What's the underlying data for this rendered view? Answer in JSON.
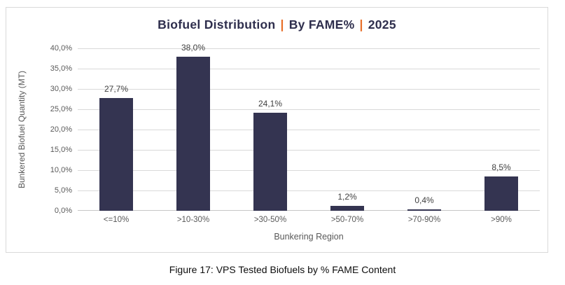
{
  "title": {
    "part1": "Biofuel Distribution",
    "separator": "|",
    "part2": "By FAME%",
    "part3": "2025"
  },
  "caption": "Figure 17: VPS Tested Biofuels by % FAME Content",
  "colors": {
    "bar": "#343451",
    "title_text": "#2E2E4D",
    "title_separator": "#E8702A",
    "axis_text": "#595959",
    "data_label_text": "#404040",
    "gridline": "#D9D9D9",
    "card_border": "#D9D9D9"
  },
  "chart_data": {
    "type": "bar",
    "title": "Biofuel Distribution | By FAME% | 2025",
    "categories": [
      "<=10%",
      ">10-30%",
      ">30-50%",
      ">50-70%",
      ">70-90%",
      ">90%"
    ],
    "values": [
      27.7,
      38.0,
      24.1,
      1.2,
      0.4,
      8.5
    ],
    "value_labels": [
      "27,7%",
      "38,0%",
      "24,1%",
      "1,2%",
      "0,4%",
      "8,5%"
    ],
    "xlabel": "Bunkering Region",
    "ylabel": "Bunkered Biofuel Quantity (MT)",
    "ylim": [
      0,
      40
    ],
    "ytick_step": 5,
    "ytick_labels": [
      "0,0%",
      "5,0%",
      "10,0%",
      "15,0%",
      "20,0%",
      "25,0%",
      "30,0%",
      "35,0%",
      "40,0%"
    ],
    "grid": true,
    "legend": false
  }
}
